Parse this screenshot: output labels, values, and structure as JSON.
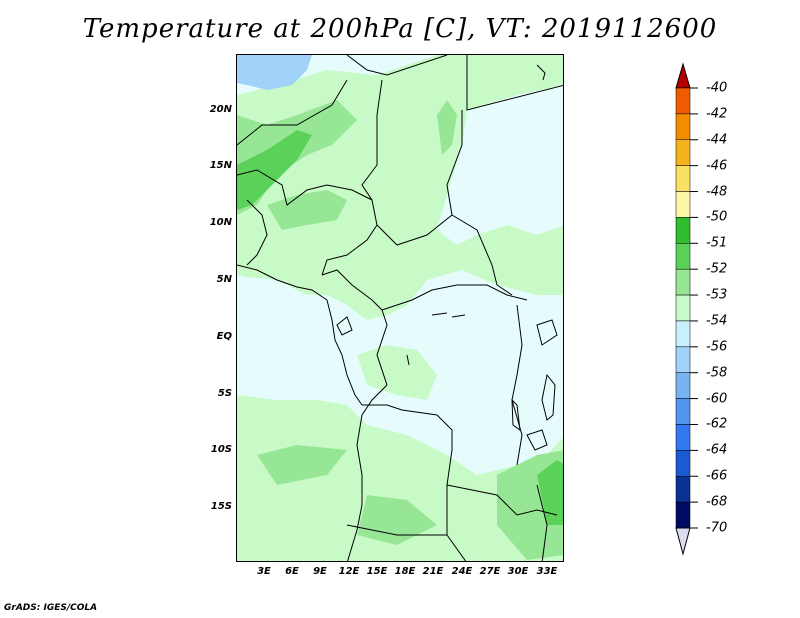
{
  "title": "Temperature at 200hPa [C], VT: 2019112600",
  "footer": "GrADS: IGES/COLA",
  "lat_labels": [
    "20N",
    "15N",
    "10N",
    "5N",
    "EQ",
    "5S",
    "10S",
    "15S"
  ],
  "lon_labels": [
    "3E",
    "6E",
    "9E",
    "12E",
    "15E",
    "18E",
    "21E",
    "24E",
    "27E",
    "30E",
    "33E"
  ],
  "colorbar": {
    "labels": [
      "-40",
      "-42",
      "-44",
      "-46",
      "-48",
      "-50",
      "-51",
      "-52",
      "-53",
      "-54",
      "-56",
      "-58",
      "-60",
      "-62",
      "-64",
      "-66",
      "-68",
      "-70"
    ],
    "colors": [
      "#e10000",
      "#f05a00",
      "#f58c00",
      "#f5b41e",
      "#fae164",
      "#fcf5a8",
      "#2ebe2e",
      "#5ad25a",
      "#96e696",
      "#c8fac8",
      "#c8f0fa",
      "#a0d2fa",
      "#78b4f0",
      "#5096f0",
      "#3278f0",
      "#1a5ad2",
      "#0a3296",
      "#000a64"
    ],
    "top_arrow_color": "#b40000",
    "bottom_arrow_color": "#dcdcf0"
  },
  "map_colors": {
    "background": "#e6fcfc",
    "light_green": "#c8fac8",
    "mid_green": "#96e696",
    "dark_green": "#5ad25a",
    "blue": "#a0d2fa"
  }
}
